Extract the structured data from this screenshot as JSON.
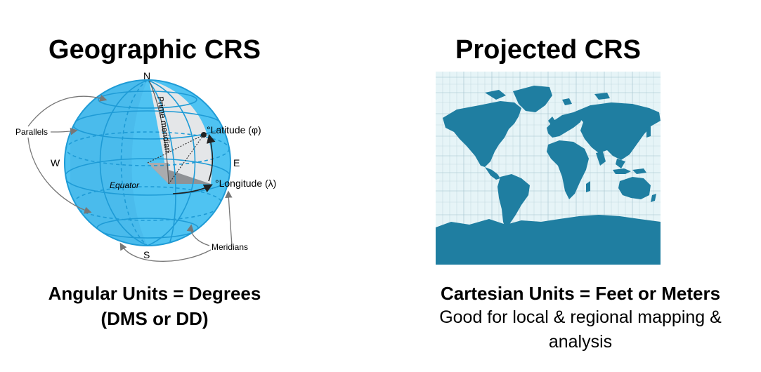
{
  "left_panel": {
    "title": "Geographic CRS",
    "caption_line1": "Angular Units = Degrees",
    "caption_line2": "(DMS or DD)",
    "globe_labels": {
      "north": "N",
      "south": "S",
      "east": "E",
      "west": "W",
      "parallels": "Parallels",
      "meridians": "Meridians",
      "equator": "Equator",
      "prime_meridian": "Prime meridian",
      "latitude": "°Latitude (φ)",
      "longitude": "°Longitude (λ)"
    }
  },
  "right_panel": {
    "title": "Projected CRS",
    "caption_line1": "Cartesian Units = Feet or Meters",
    "caption_line2": "Good for local & regional mapping &",
    "caption_line3": "analysis"
  },
  "colors": {
    "globe_fill": "#4fc3f2",
    "globe_line": "#1e9bd6",
    "map_ocean": "#e6f4f7",
    "map_land": "#1f7ea1",
    "map_grid": "#9fbfca"
  }
}
